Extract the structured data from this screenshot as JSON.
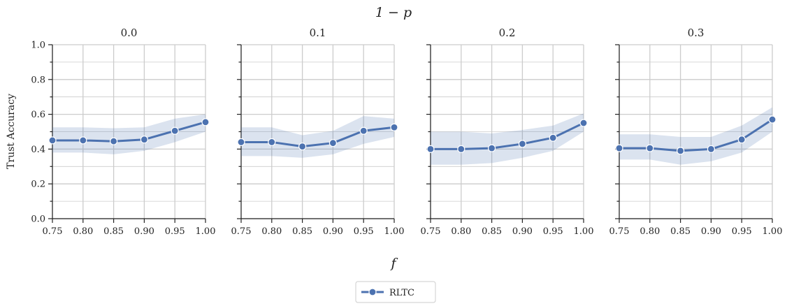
{
  "chart_data": {
    "type": "line",
    "suptitle": "1 − p",
    "xlabel": "f",
    "ylabel": "Trust Accuracy",
    "x": [
      0.75,
      0.8,
      0.85,
      0.9,
      0.95,
      1.0
    ],
    "x_tick_labels": [
      "0.75",
      "0.80",
      "0.85",
      "0.90",
      "0.95",
      "1.00"
    ],
    "xlim": [
      0.75,
      1.0
    ],
    "ylim": [
      0.0,
      1.0
    ],
    "y_ticks": [
      0.0,
      0.2,
      0.4,
      0.6,
      0.8,
      1.0
    ],
    "y_tick_labels": [
      "0.0",
      "0.2",
      "0.4",
      "0.6",
      "0.8",
      "1.0"
    ],
    "grid": true,
    "legend_position": "bottom-center",
    "colors": {
      "line": "#4c72b0",
      "band": "#4c72b0",
      "grid": "#cccccc"
    },
    "series_name": "RLTC",
    "panels": [
      {
        "title": "0.0",
        "y": [
          0.45,
          0.45,
          0.445,
          0.455,
          0.505,
          0.555
        ],
        "lower": [
          0.38,
          0.38,
          0.37,
          0.39,
          0.44,
          0.5
        ],
        "upper": [
          0.525,
          0.525,
          0.52,
          0.525,
          0.575,
          0.6
        ]
      },
      {
        "title": "0.1",
        "y": [
          0.44,
          0.44,
          0.415,
          0.435,
          0.505,
          0.525
        ],
        "lower": [
          0.36,
          0.36,
          0.35,
          0.37,
          0.43,
          0.47
        ],
        "upper": [
          0.525,
          0.525,
          0.48,
          0.505,
          0.59,
          0.575
        ]
      },
      {
        "title": "0.2",
        "y": [
          0.4,
          0.4,
          0.405,
          0.43,
          0.465,
          0.55
        ],
        "lower": [
          0.31,
          0.31,
          0.32,
          0.35,
          0.39,
          0.5
        ],
        "upper": [
          0.5,
          0.5,
          0.49,
          0.51,
          0.535,
          0.605
        ]
      },
      {
        "title": "0.3",
        "y": [
          0.405,
          0.405,
          0.39,
          0.4,
          0.455,
          0.57
        ],
        "lower": [
          0.34,
          0.34,
          0.31,
          0.33,
          0.38,
          0.5
        ],
        "upper": [
          0.485,
          0.485,
          0.47,
          0.47,
          0.535,
          0.64
        ]
      }
    ]
  }
}
